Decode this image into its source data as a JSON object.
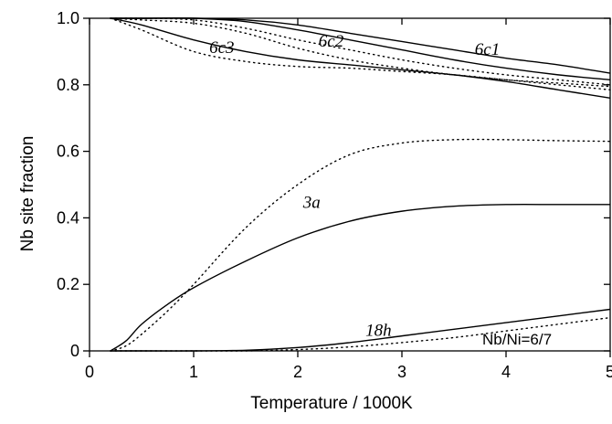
{
  "chart_data": {
    "type": "line",
    "xlabel": "Temperature / 1000K",
    "ylabel": "Nb site fraction",
    "xlim": [
      0,
      5
    ],
    "ylim": [
      0,
      1.0
    ],
    "xticks": [
      "0",
      "1",
      "2",
      "3",
      "4",
      "5"
    ],
    "yticks": [
      "0",
      "0.2",
      "0.4",
      "0.6",
      "0.8",
      "1.0"
    ],
    "grid": false,
    "annotation": "Nb/Ni=6/7",
    "series": [
      {
        "name": "6c1",
        "style": "solid",
        "x": [
          0.2,
          0.5,
          1.0,
          1.5,
          2.0,
          2.5,
          3.0,
          3.5,
          4.0,
          4.5,
          5.0
        ],
        "y": [
          1.0,
          1.0,
          1.0,
          0.995,
          0.98,
          0.955,
          0.93,
          0.905,
          0.88,
          0.86,
          0.835
        ]
      },
      {
        "name": "6c1",
        "style": "dotted",
        "x": [
          0.2,
          0.5,
          1.0,
          1.5,
          2.0,
          2.5,
          3.0,
          3.5,
          4.0,
          4.5,
          5.0
        ],
        "y": [
          1.0,
          1.0,
          0.995,
          0.97,
          0.935,
          0.905,
          0.875,
          0.85,
          0.83,
          0.815,
          0.8
        ]
      },
      {
        "name": "6c2",
        "style": "solid",
        "x": [
          0.2,
          0.5,
          1.0,
          1.5,
          2.0,
          2.5,
          3.0,
          3.5,
          4.0,
          4.5,
          5.0
        ],
        "y": [
          1.0,
          1.0,
          1.0,
          0.99,
          0.965,
          0.935,
          0.905,
          0.875,
          0.85,
          0.83,
          0.815
        ]
      },
      {
        "name": "6c2",
        "style": "dotted",
        "x": [
          0.2,
          0.5,
          1.0,
          1.5,
          2.0,
          2.5,
          3.0,
          3.5,
          4.0,
          4.5,
          5.0
        ],
        "y": [
          1.0,
          0.995,
          0.985,
          0.955,
          0.91,
          0.875,
          0.85,
          0.83,
          0.815,
          0.805,
          0.795
        ]
      },
      {
        "name": "6c3",
        "style": "solid",
        "x": [
          0.2,
          0.5,
          1.0,
          1.5,
          2.0,
          2.5,
          3.0,
          3.5,
          4.0,
          4.5,
          5.0
        ],
        "y": [
          1.0,
          0.98,
          0.935,
          0.9,
          0.875,
          0.86,
          0.845,
          0.83,
          0.81,
          0.785,
          0.76
        ]
      },
      {
        "name": "6c3",
        "style": "dotted",
        "x": [
          0.2,
          0.5,
          1.0,
          1.5,
          2.0,
          2.5,
          3.0,
          3.5,
          4.0,
          4.5,
          5.0
        ],
        "y": [
          1.0,
          0.965,
          0.9,
          0.87,
          0.855,
          0.85,
          0.84,
          0.83,
          0.815,
          0.8,
          0.785
        ]
      },
      {
        "name": "3a",
        "style": "solid",
        "x": [
          0.2,
          0.35,
          0.5,
          0.75,
          1.0,
          1.5,
          2.0,
          2.5,
          3.0,
          3.5,
          4.0,
          4.5,
          5.0
        ],
        "y": [
          0.0,
          0.03,
          0.08,
          0.14,
          0.19,
          0.27,
          0.34,
          0.39,
          0.42,
          0.435,
          0.44,
          0.44,
          0.44
        ]
      },
      {
        "name": "3a",
        "style": "dotted",
        "x": [
          0.2,
          0.35,
          0.5,
          0.75,
          1.0,
          1.5,
          2.0,
          2.5,
          3.0,
          3.5,
          4.0,
          4.5,
          5.0
        ],
        "y": [
          0.0,
          0.015,
          0.05,
          0.12,
          0.2,
          0.37,
          0.5,
          0.59,
          0.625,
          0.635,
          0.635,
          0.632,
          0.63
        ]
      },
      {
        "name": "18h",
        "style": "solid",
        "x": [
          0.2,
          0.5,
          1.0,
          1.5,
          2.0,
          2.5,
          3.0,
          3.5,
          4.0,
          4.5,
          5.0
        ],
        "y": [
          0.0,
          0.0,
          0.0,
          0.002,
          0.01,
          0.025,
          0.045,
          0.065,
          0.085,
          0.105,
          0.125
        ]
      },
      {
        "name": "18h",
        "style": "dotted",
        "x": [
          0.2,
          0.5,
          1.0,
          1.5,
          2.0,
          2.5,
          3.0,
          3.5,
          4.0,
          4.5,
          5.0
        ],
        "y": [
          0.0,
          0.0,
          0.0,
          0.0,
          0.004,
          0.012,
          0.025,
          0.04,
          0.06,
          0.08,
          0.1
        ]
      }
    ],
    "curve_labels": [
      {
        "text": "6c1",
        "x": 3.7,
        "y": 0.89
      },
      {
        "text": "6c2",
        "x": 2.2,
        "y": 0.915
      },
      {
        "text": "6c3",
        "x": 1.15,
        "y": 0.895
      },
      {
        "text": "3a",
        "x": 2.05,
        "y": 0.43
      },
      {
        "text": "18h",
        "x": 2.65,
        "y": 0.045
      }
    ]
  }
}
